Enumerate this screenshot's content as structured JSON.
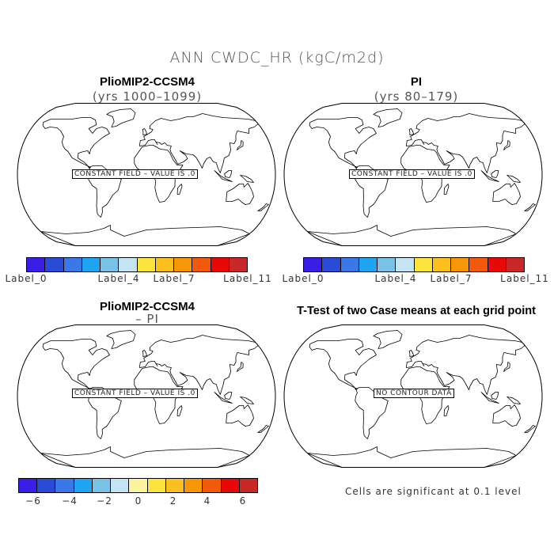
{
  "title": "ANN CWDC_HR (kgC/m2d)",
  "panels": [
    {
      "title": "PlioMIP2-CCSM4",
      "subtitle": "(yrs 1000–1099)",
      "message": "CONSTANT FIELD – VALUE IS .0"
    },
    {
      "title": "PI",
      "subtitle": "(yrs 80–179)",
      "message": "CONSTANT FIELD – VALUE IS .0"
    },
    {
      "title": "PlioMIP2-CCSM4",
      "subtitle": "– PI",
      "message": "CONSTANT FIELD – VALUE IS .0"
    },
    {
      "title": "T-Test of two Case means at each grid point",
      "subtitle": "",
      "message": "NO CONTOUR DATA"
    }
  ],
  "colorbar_abs": {
    "colors": [
      "#3a1ee6",
      "#2a4bd6",
      "#3a78e8",
      "#1ea4f0",
      "#78c2e8",
      "#c4e4f4",
      "#fce43c",
      "#fcc01e",
      "#f8960a",
      "#f05a0a",
      "#e80808",
      "#c82828"
    ],
    "labels": [
      "Label_0",
      "Label_4",
      "Label_7",
      "Label_11"
    ]
  },
  "colorbar_diff": {
    "colors": [
      "#3a1ee6",
      "#2a4bd6",
      "#3a78e8",
      "#1ea4f0",
      "#78c2e8",
      "#c4e4f4",
      "#fcf49a",
      "#fce43c",
      "#fcc01e",
      "#f8960a",
      "#f05a0a",
      "#e80808",
      "#c82828"
    ],
    "labels": [
      "−6",
      "−4",
      "−2",
      "0",
      "2",
      "4",
      "6"
    ]
  },
  "significance_note": "Cells are significant at 0.1 level"
}
